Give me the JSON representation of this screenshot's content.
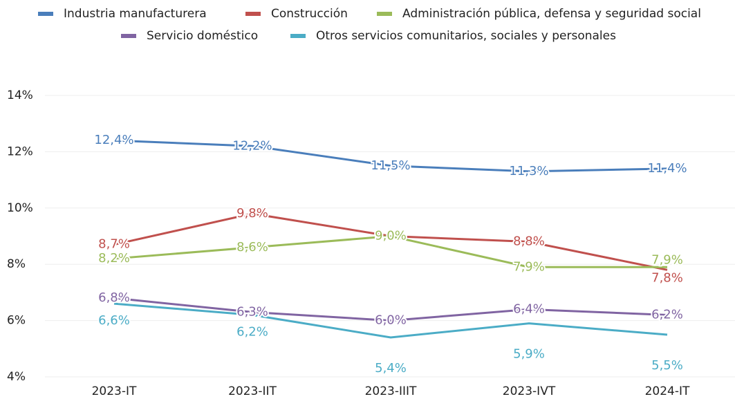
{
  "chart_data": {
    "type": "line",
    "categories": [
      "2023-IT",
      "2023-IIT",
      "2023-IIIT",
      "2023-IVT",
      "2024-IT"
    ],
    "series": [
      {
        "name": "Industria manufacturera",
        "color": "#4a7ebb",
        "values": [
          12.4,
          12.2,
          11.5,
          11.3,
          11.4
        ],
        "value_labels": [
          "12,4%",
          "12,2%",
          "11,5%",
          "11,3%",
          "11,4%"
        ]
      },
      {
        "name": "Construcción",
        "color": "#c0504d",
        "values": [
          8.7,
          9.8,
          9.0,
          8.8,
          7.8
        ],
        "value_labels": [
          "8,7%",
          "9,8%",
          "9,0%",
          "8,8%",
          "7,8%"
        ]
      },
      {
        "name": "Administración pública, defensa y seguridad social",
        "color": "#9bbb59",
        "values": [
          8.2,
          8.6,
          9.0,
          7.9,
          7.9
        ],
        "value_labels": [
          "8,2%",
          "8,6%",
          "9,0%",
          "7,9%",
          "7,9%"
        ]
      },
      {
        "name": "Servicio doméstico",
        "color": "#8064a2",
        "values": [
          6.8,
          6.3,
          6.0,
          6.4,
          6.2
        ],
        "value_labels": [
          "6,8%",
          "6,3%",
          "6,0%",
          "6,4%",
          "6,2%"
        ]
      },
      {
        "name": "Otros servicios comunitarios, sociales y personales",
        "color": "#4bacc6",
        "values": [
          6.6,
          6.2,
          5.4,
          5.9,
          5.5
        ],
        "value_labels": [
          "6,6%",
          "6,2%",
          "5,4%",
          "5,9%",
          "5,5%"
        ]
      }
    ],
    "ylim": [
      4,
      14
    ],
    "yticks": [
      {
        "value": 4,
        "label": "4%"
      },
      {
        "value": 6,
        "label": "6%"
      },
      {
        "value": 8,
        "label": "8%"
      },
      {
        "value": 10,
        "label": "10%"
      },
      {
        "value": 12,
        "label": "12%"
      },
      {
        "value": 14,
        "label": "14%"
      }
    ],
    "grid": true
  }
}
